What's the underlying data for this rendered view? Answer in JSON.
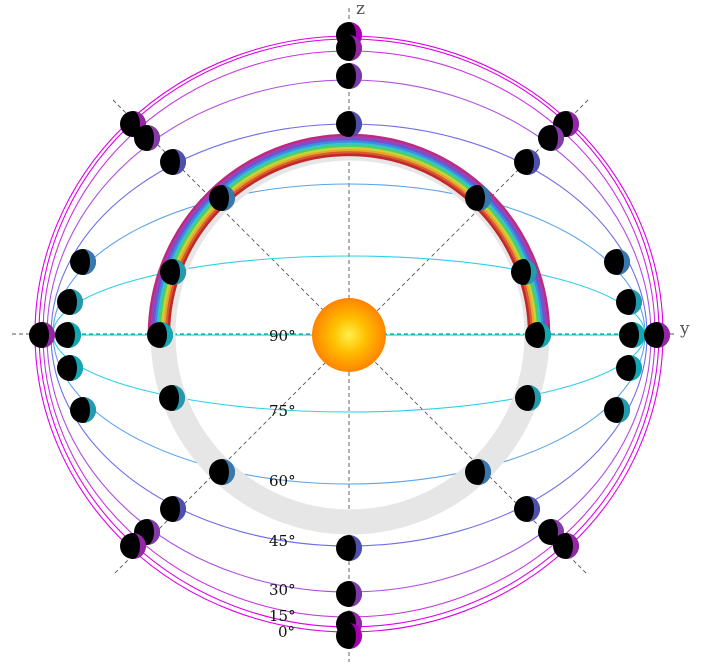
{
  "axes": {
    "z_label": "z",
    "y_label": "y"
  },
  "altitude_labels": [
    "90°",
    "75°",
    "60°",
    "45°",
    "30°",
    "15°",
    "0°"
  ],
  "altitudes_deg": [
    0,
    15,
    30,
    45,
    60,
    75,
    90
  ],
  "longitudes_deg": [
    0,
    45,
    90,
    135,
    180,
    225,
    270,
    315
  ],
  "colors": {
    "sun_core": "#ffe033",
    "sun_edge": "#ff8a00",
    "shadow_ring": "#e6e6e6",
    "dashed_axes": "#555555",
    "rainbow": [
      "#c0287a",
      "#a23fb5",
      "#6d55d0",
      "#3a8fe0",
      "#38c4c9",
      "#4fcf63",
      "#c8d33a",
      "#e8a52e",
      "#d95a2a",
      "#c0282e"
    ],
    "circle_0": "#e000e8",
    "circle_15": "#c833e0",
    "circle_30": "#b04fe0",
    "circle_45": "#6e6ee8",
    "circle_60": "#5aa4e8",
    "circle_75": "#2fcfe8",
    "circle_90": "#17e0f0"
  }
}
